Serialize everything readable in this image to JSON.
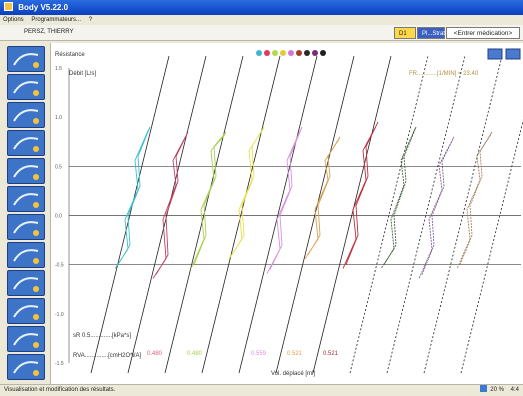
{
  "window": {
    "title": "Body V5.22.0"
  },
  "menu": {
    "items": [
      "Options",
      "Programmateurs...",
      "?"
    ]
  },
  "patient": {
    "name": "PERSZ, THIERRY"
  },
  "header_buttons": {
    "btn1": "D1",
    "btn2": "Pl...Strat",
    "medication": "<Entrer médication>"
  },
  "chart": {
    "section_label": "Résistance",
    "ylabel": "Débit [L/s]",
    "fit_text": "FR............[1/MIN] = 23.40",
    "xlabel": "Vol. déplacé [ml]",
    "ytick_labels": [
      "1.5",
      "1.0",
      "0.5",
      "0.0",
      "-0.5",
      "-1.0",
      "-1.5"
    ],
    "bottom_left_1": "sR 0.5.............[kPa*s]",
    "bottom_left_2": "RVA..............[cmH2O*l/A]",
    "value_labels": [
      "0.480",
      "0.480",
      "0.559",
      "0.521",
      "0.521"
    ]
  },
  "legend_colors": [
    "#3db5d8",
    "#e03a62",
    "#b3d94a",
    "#e8c83a",
    "#d078d8",
    "#a83a2a",
    "#2a2a2a",
    "#7a2a7a",
    "#202020"
  ],
  "series_colors": [
    "#38c0d0",
    "#c04060",
    "#a8d050",
    "#e8e04a",
    "#d890e0",
    "#d8a050",
    "#c03040",
    "#406040",
    "#806090",
    "#a08060"
  ],
  "status": {
    "text": "Visualisation et modification des résultats.",
    "zoom": "20 %",
    "time": "4:4"
  },
  "tools": [
    "spirometry-tool",
    "flow-volume-tool",
    "lung-volume-tool",
    "resistance-tool",
    "diffusion-tool",
    "provocation-tool",
    "print-tool",
    "trend-tool",
    "compare-tool",
    "report-tool",
    "export-tool",
    "settings-tool"
  ],
  "chart_data": {
    "type": "line",
    "title": "Résistance",
    "ylabel": "Débit [L/s]",
    "xlabel": "Vol. déplacé [ml]",
    "ylim": [
      -1.5,
      1.5
    ],
    "yticks": [
      1.5,
      1.0,
      0.5,
      0.0,
      -0.5,
      -1.0,
      -1.5
    ],
    "grid": "horizontal lines at 0.5, 0.0, -0.5",
    "series": [
      {
        "values": [
          -0.5,
          -0.3,
          0.0,
          0.3,
          0.6,
          0.9
        ]
      },
      {
        "values": [
          -0.6,
          -0.4,
          0.0,
          0.35,
          0.6,
          0.85
        ]
      },
      {
        "values": [
          -0.5,
          -0.2,
          0.1,
          0.4,
          0.7,
          0.85
        ]
      },
      {
        "values": [
          -0.4,
          -0.2,
          0.1,
          0.4,
          0.7,
          0.9
        ]
      },
      {
        "values": [
          -0.55,
          -0.3,
          0.0,
          0.3,
          0.6,
          0.9
        ]
      },
      {
        "values": [
          -0.4,
          -0.2,
          0.1,
          0.4,
          0.6,
          0.8
        ]
      },
      {
        "values": [
          -0.5,
          -0.2,
          0.1,
          0.4,
          0.7,
          0.95
        ]
      },
      {
        "values": [
          -0.5,
          -0.3,
          0.0,
          0.35,
          0.6,
          0.9
        ]
      },
      {
        "values": [
          -0.6,
          -0.3,
          0.0,
          0.3,
          0.55,
          0.8
        ]
      },
      {
        "values": [
          -0.5,
          -0.2,
          0.1,
          0.4,
          0.65,
          0.85
        ]
      }
    ]
  }
}
